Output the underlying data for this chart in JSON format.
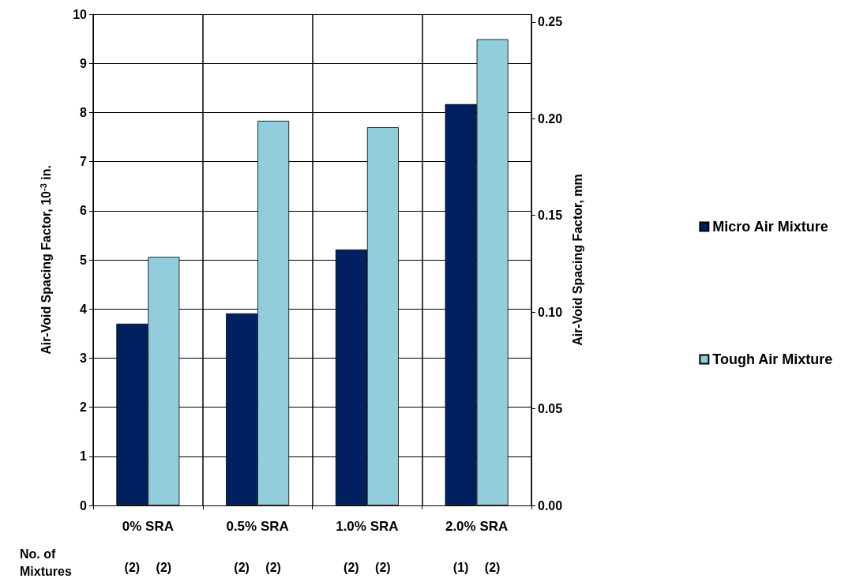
{
  "chart_data": {
    "type": "bar",
    "ylabel": "Air-Void Spacing Factor, 10$^{-3}$ in.",
    "y2label": "Air-Void Spacing Factor, mm",
    "categories": [
      "0% SRA",
      "0.5% SRA",
      "1.0% SRA",
      "2.0% SRA"
    ],
    "series": [
      {
        "name": "Micro Air Mixture",
        "color": "#002060",
        "values": [
          3.7,
          3.91,
          5.21,
          8.17
        ]
      },
      {
        "name": "Tough Air Mixture",
        "color": "#92cddc",
        "values": [
          5.06,
          7.83,
          7.7,
          9.49
        ]
      }
    ],
    "ylim": [
      0,
      10
    ],
    "yticks": [
      0,
      1,
      2,
      3,
      4,
      5,
      6,
      7,
      8,
      9,
      10
    ],
    "y2lim": [
      0,
      0.254
    ],
    "y2ticks": [
      {
        "value": 0,
        "label": "0.00"
      },
      {
        "value": 0.05,
        "label": "0.05"
      },
      {
        "value": 0.1,
        "label": "0.10"
      },
      {
        "value": 0.15,
        "label": "0.15"
      },
      {
        "value": 0.2,
        "label": "0.20"
      },
      {
        "value": 0.25,
        "label": "0.25"
      }
    ],
    "annotations": [
      "No. of Mixtures",
      "(2)",
      "(2)",
      "(2)",
      "(2)",
      "(2)",
      "(2)",
      "(1)",
      "(2)"
    ],
    "grid": true,
    "legend": "right"
  }
}
